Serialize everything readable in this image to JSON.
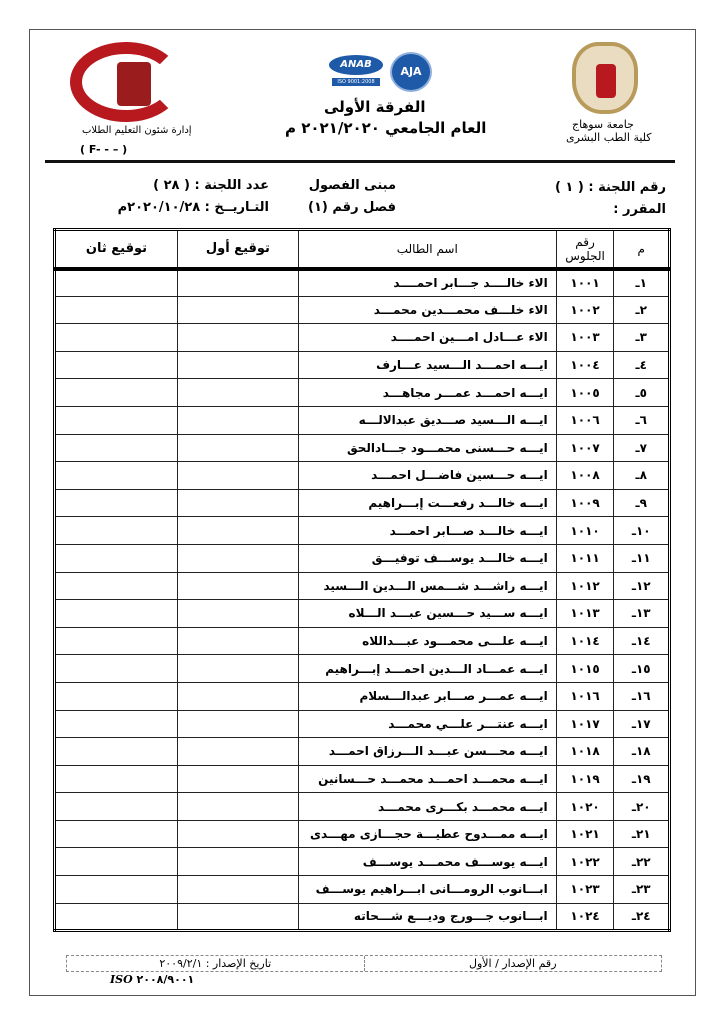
{
  "header": {
    "university": "جامعة سوهاج",
    "faculty": "كلية الطب البشرى",
    "year_group": "الفرقة الأولى",
    "academic_year": "العام الجامعي ٢٠٢١/٢٠٢٠ م",
    "department": "إدارة شئون التعليم الطلاب",
    "form_code": "( F-     -    –    )",
    "logo_text": "كلية الطب - جامعة سوهاج",
    "cert_logos": [
      "ANAB",
      "AJA",
      "ISO 9001:2008"
    ]
  },
  "info": {
    "committee_no": "رقم اللجنة : ( ١ )",
    "course": "المقرر :",
    "building": "مبنى الفصول",
    "room": "فصل رقم (١)",
    "committee_count": "عدد اللجنة : ( ٢٨ )",
    "date": "التـاريــخ : ٢٠٢٠/١٠/٢٨م"
  },
  "table": {
    "headers": [
      "م",
      "رقم الجلوس",
      "اسم الطالب",
      "توقيع أول",
      "توقيع ثان"
    ],
    "rows": [
      [
        "١ـ",
        "١٠٠١",
        "الاء خالــــد جـــابر احمــــد"
      ],
      [
        "٢ـ",
        "١٠٠٢",
        "الاء خلـــف محمـــدين محمـــد"
      ],
      [
        "٣ـ",
        "١٠٠٣",
        "الاء عـــادل امـــين احمــــد"
      ],
      [
        "٤ـ",
        "١٠٠٤",
        "ايـــه احمـــد الـــسيد عـــارف"
      ],
      [
        "٥ـ",
        "١٠٠٥",
        "ايـــه احمـــد عمـــر مجاهـــد"
      ],
      [
        "٦ـ",
        "١٠٠٦",
        "ايـــه الـــسيد صـــديق عبدالالـــه"
      ],
      [
        "٧ـ",
        "١٠٠٧",
        "ايـــه حـــسنى محمـــود جـــادالحق"
      ],
      [
        "٨ـ",
        "١٠٠٨",
        "ايـــه حـــسين فاضـــل احمـــد"
      ],
      [
        "٩ـ",
        "١٠٠٩",
        "ايـــه خالـــد رفعـــت إبـــراهيم"
      ],
      [
        "١٠ـ",
        "١٠١٠",
        "ايـــه خالـــد صـــابر احمـــد"
      ],
      [
        "١١ـ",
        "١٠١١",
        "ايـــه خالـــد يوســـف توفيـــق"
      ],
      [
        "١٢ـ",
        "١٠١٢",
        "ايـــه راشـــد شـــمس الـــدين الـــسيد"
      ],
      [
        "١٣ـ",
        "١٠١٣",
        "ايـــه ســـيد حـــسين عبـــد الـــلاه"
      ],
      [
        "١٤ـ",
        "١٠١٤",
        "ايـــه علـــى محمـــود عبـــداللاه"
      ],
      [
        "١٥ـ",
        "١٠١٥",
        "ايـــه عمـــاد الـــدين احمـــد إبـــراهيم"
      ],
      [
        "١٦ـ",
        "١٠١٦",
        "ايـــه عمـــر صـــابر عبدالـــسلام"
      ],
      [
        "١٧ـ",
        "١٠١٧",
        "ايـــه عنتـــر علـــي محمـــد"
      ],
      [
        "١٨ـ",
        "١٠١٨",
        "ايـــه محـــسن عبـــد الـــرزاق احمـــد"
      ],
      [
        "١٩ـ",
        "١٠١٩",
        "ايـــه محمـــد احمـــد محمـــد حـــسانين"
      ],
      [
        "٢٠ـ",
        "١٠٢٠",
        "ايـــه محمـــد بكـــرى محمـــد"
      ],
      [
        "٢١ـ",
        "١٠٢١",
        "ايـــه ممـــدوح عطيـــة حجـــازى مهـــدى"
      ],
      [
        "٢٢ـ",
        "١٠٢٢",
        "ايـــه يوســـف محمـــد يوســـف"
      ],
      [
        "٢٣ـ",
        "١٠٢٣",
        "ابـــانوب الرومـــانى ابـــراهيم يوســـف"
      ],
      [
        "٢٤ـ",
        "١٠٢٤",
        "ابـــانوب جـــورج وديـــع شـــحاته"
      ]
    ]
  },
  "footer": {
    "issue_no": "رقم الإصدار / الأول",
    "issue_date": "تاريخ الإصدار : ٢٠٠٩/٢/١",
    "iso_prefix": "ISO",
    "iso_text": "٢٠٠٨/٩٠٠١"
  },
  "colors": {
    "logo_red": "#b8191f",
    "anab_blue": "#1e5aa8",
    "seal_gold": "#b89a5a"
  }
}
